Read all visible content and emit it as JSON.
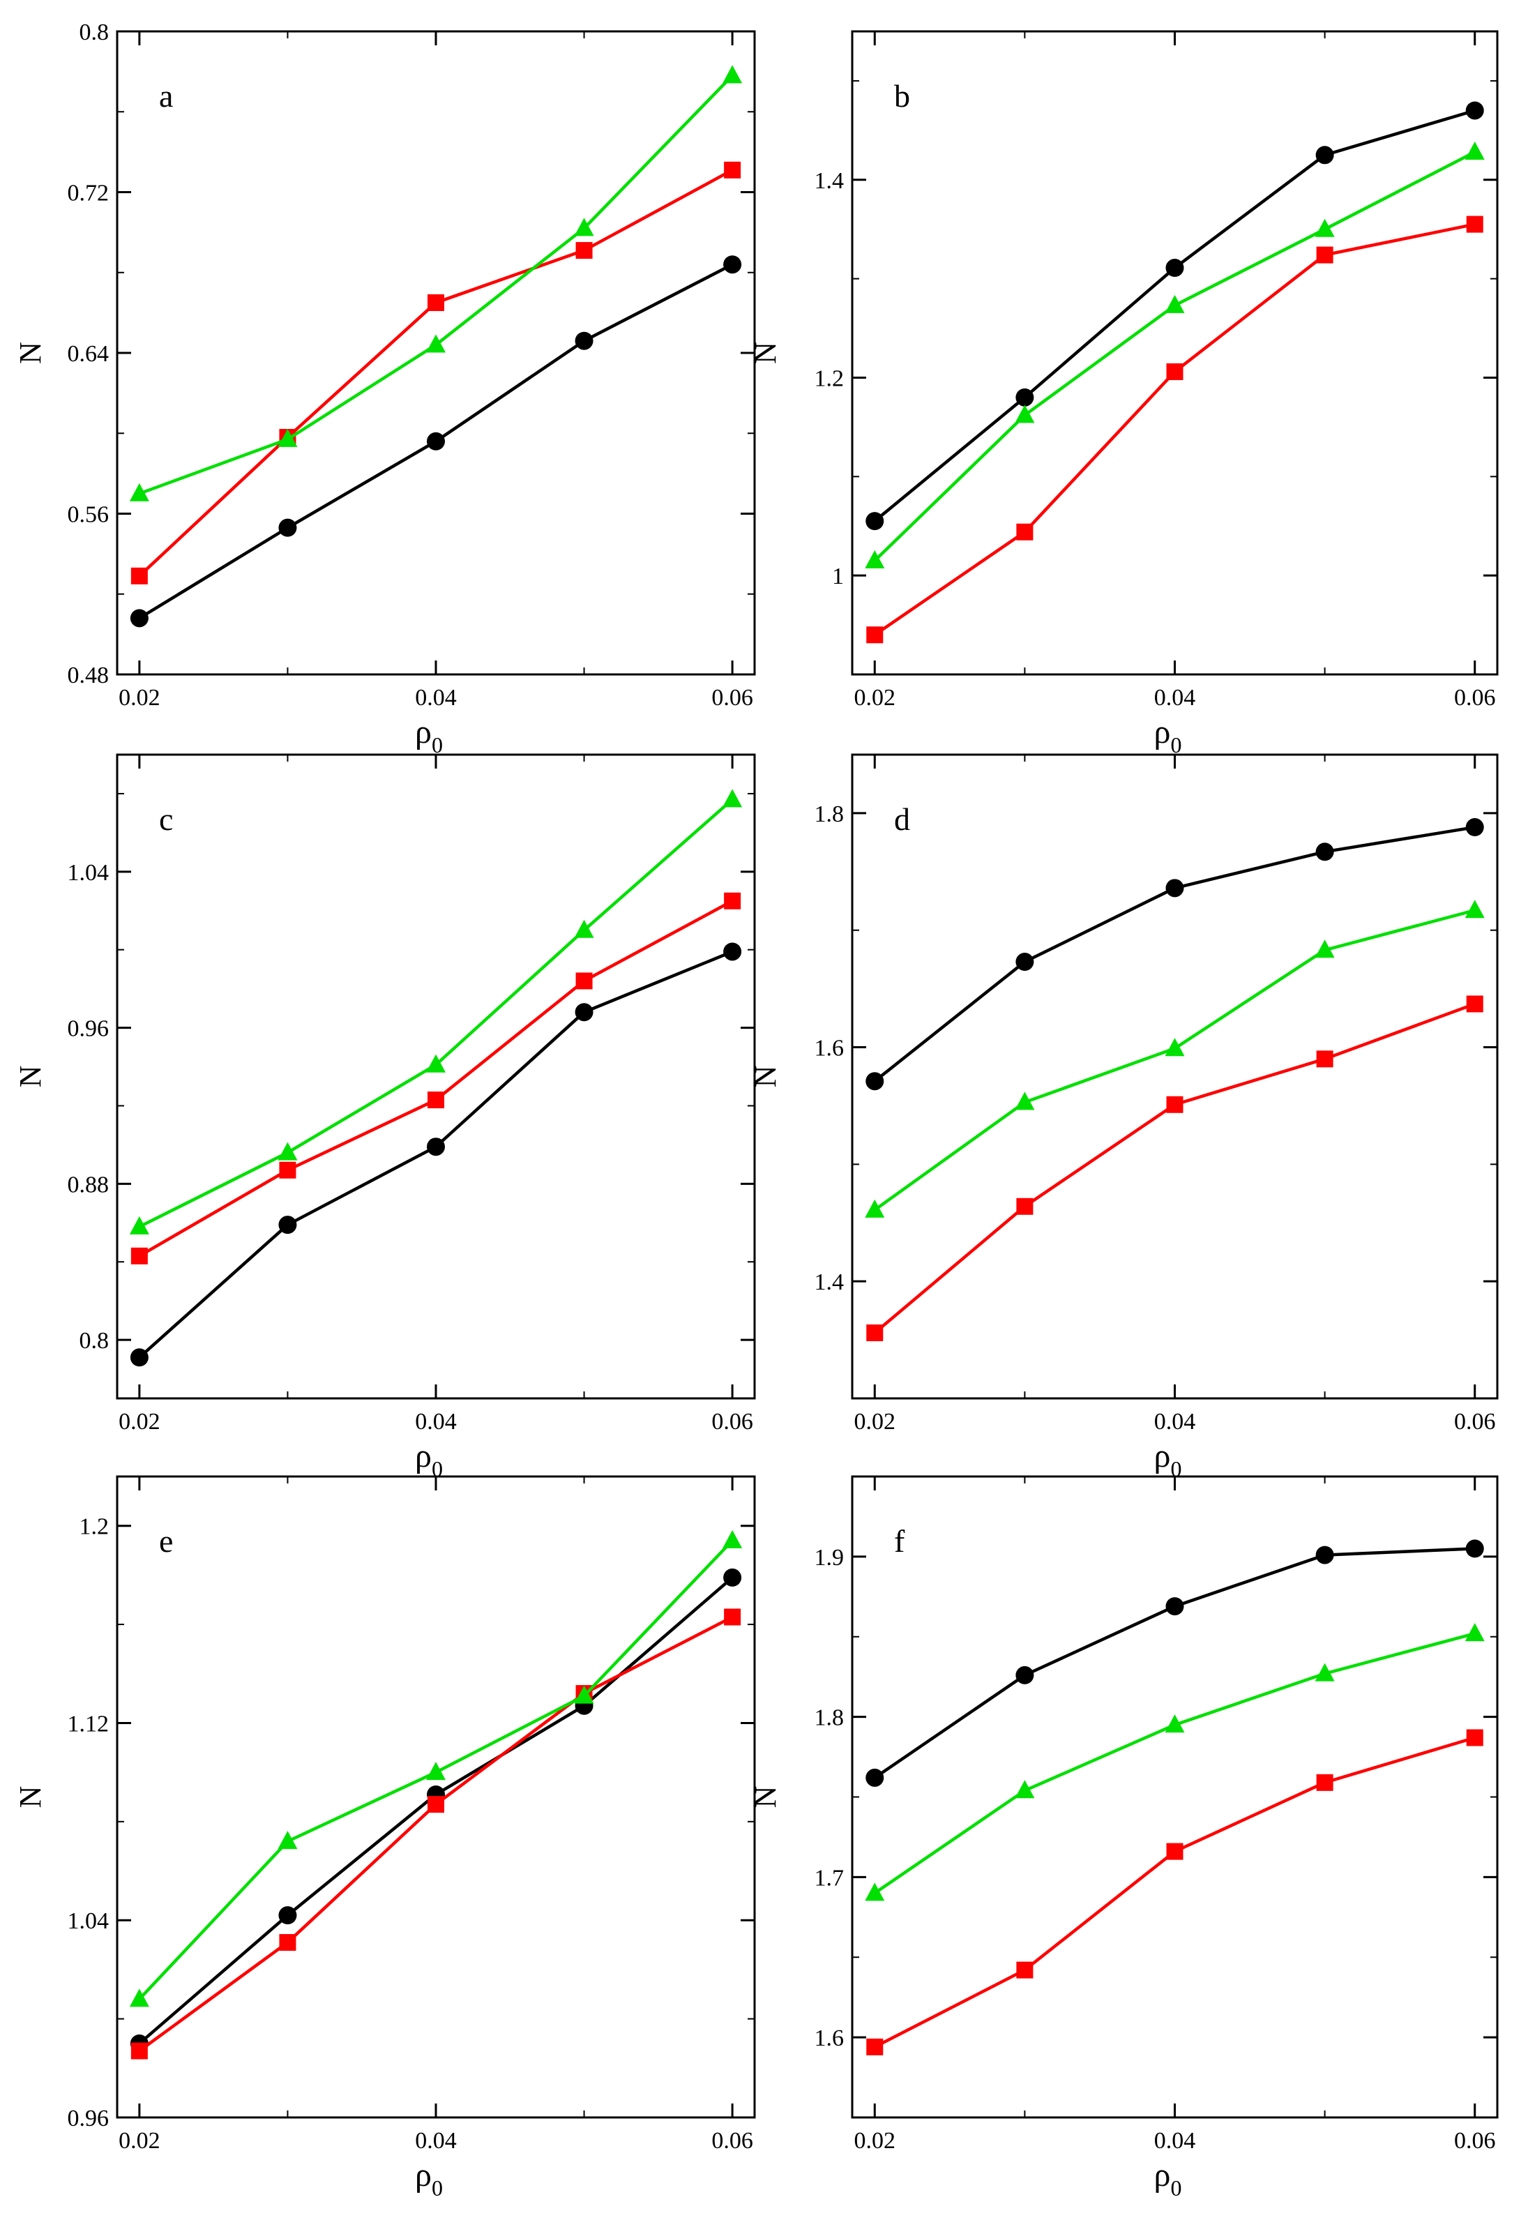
{
  "chart_data": [
    {
      "panel": "a",
      "type": "line",
      "x": [
        0.02,
        0.03,
        0.04,
        0.05,
        0.06
      ],
      "xlabel": "ρ",
      "xlabel_sub": "0",
      "ylabel": "N",
      "xlim": [
        0.0185,
        0.0615
      ],
      "ylim": [
        0.48,
        0.8
      ],
      "xticks": [
        "0.02",
        "0.04",
        "0.06"
      ],
      "yticks": [
        "0.48",
        "0.56",
        "0.64",
        "0.72",
        "0.8"
      ],
      "series": [
        {
          "name": "circle",
          "color": "#000000",
          "marker": "circle",
          "values": [
            0.508,
            0.553,
            0.596,
            0.646,
            0.684
          ]
        },
        {
          "name": "square",
          "color": "#ff0000",
          "marker": "square",
          "values": [
            0.529,
            0.598,
            0.665,
            0.691,
            0.731
          ]
        },
        {
          "name": "triangle",
          "color": "#00e000",
          "marker": "triangle",
          "values": [
            0.57,
            0.597,
            0.644,
            0.702,
            0.778
          ]
        }
      ]
    },
    {
      "panel": "b",
      "type": "line",
      "x": [
        0.02,
        0.03,
        0.04,
        0.05,
        0.06
      ],
      "xlabel": "ρ",
      "xlabel_sub": "0",
      "ylabel": "N",
      "xlim": [
        0.0185,
        0.0615
      ],
      "ylim": [
        0.9,
        1.55
      ],
      "xticks": [
        "0.02",
        "0.04",
        "0.06"
      ],
      "yticks": [
        "1",
        "1.2",
        "1.4"
      ],
      "series": [
        {
          "name": "circle",
          "color": "#000000",
          "marker": "circle",
          "values": [
            1.055,
            1.18,
            1.311,
            1.425,
            1.47
          ]
        },
        {
          "name": "square",
          "color": "#ff0000",
          "marker": "square",
          "values": [
            0.94,
            1.044,
            1.206,
            1.324,
            1.355
          ]
        },
        {
          "name": "triangle",
          "color": "#00e000",
          "marker": "triangle",
          "values": [
            1.015,
            1.162,
            1.273,
            1.35,
            1.428
          ]
        }
      ]
    },
    {
      "panel": "c",
      "type": "line",
      "x": [
        0.02,
        0.03,
        0.04,
        0.05,
        0.06
      ],
      "xlabel": "ρ",
      "xlabel_sub": "0",
      "ylabel": "N",
      "xlim": [
        0.0185,
        0.0615
      ],
      "ylim": [
        0.77,
        1.1
      ],
      "xticks": [
        "0.02",
        "0.04",
        "0.06"
      ],
      "yticks": [
        "0.8",
        "0.88",
        "0.96",
        "1.04"
      ],
      "series": [
        {
          "name": "circle",
          "color": "#000000",
          "marker": "circle",
          "values": [
            0.791,
            0.859,
            0.899,
            0.968,
            0.999
          ]
        },
        {
          "name": "square",
          "color": "#ff0000",
          "marker": "square",
          "values": [
            0.843,
            0.887,
            0.923,
            0.984,
            1.025
          ]
        },
        {
          "name": "triangle",
          "color": "#00e000",
          "marker": "triangle",
          "values": [
            0.858,
            0.896,
            0.941,
            1.01,
            1.077
          ]
        }
      ]
    },
    {
      "panel": "d",
      "type": "line",
      "x": [
        0.02,
        0.03,
        0.04,
        0.05,
        0.06
      ],
      "xlabel": "ρ",
      "xlabel_sub": "0",
      "ylabel": "N",
      "xlim": [
        0.0185,
        0.0615
      ],
      "ylim": [
        1.3,
        1.85
      ],
      "xticks": [
        "0.02",
        "0.04",
        "0.06"
      ],
      "yticks": [
        "1.4",
        "1.6",
        "1.8"
      ],
      "series": [
        {
          "name": "circle",
          "color": "#000000",
          "marker": "circle",
          "values": [
            1.571,
            1.673,
            1.736,
            1.767,
            1.788
          ]
        },
        {
          "name": "square",
          "color": "#ff0000",
          "marker": "square",
          "values": [
            1.356,
            1.464,
            1.551,
            1.59,
            1.637
          ]
        },
        {
          "name": "triangle",
          "color": "#00e000",
          "marker": "triangle",
          "values": [
            1.461,
            1.553,
            1.599,
            1.683,
            1.717
          ]
        }
      ]
    },
    {
      "panel": "e",
      "type": "line",
      "x": [
        0.02,
        0.03,
        0.04,
        0.05,
        0.06
      ],
      "xlabel": "ρ",
      "xlabel_sub": "0",
      "ylabel": "N",
      "xlim": [
        0.0185,
        0.0615
      ],
      "ylim": [
        0.96,
        1.22
      ],
      "xticks": [
        "0.02",
        "0.04",
        "0.06"
      ],
      "yticks": [
        "0.96",
        "1.04",
        "1.12",
        "1.2"
      ],
      "series": [
        {
          "name": "circle",
          "color": "#000000",
          "marker": "circle",
          "values": [
            0.99,
            1.042,
            1.091,
            1.127,
            1.179
          ]
        },
        {
          "name": "square",
          "color": "#ff0000",
          "marker": "square",
          "values": [
            0.987,
            1.031,
            1.087,
            1.132,
            1.163
          ]
        },
        {
          "name": "triangle",
          "color": "#00e000",
          "marker": "triangle",
          "values": [
            1.008,
            1.072,
            1.1,
            1.131,
            1.194
          ]
        }
      ]
    },
    {
      "panel": "f",
      "type": "line",
      "x": [
        0.02,
        0.03,
        0.04,
        0.05,
        0.06
      ],
      "xlabel": "ρ",
      "xlabel_sub": "0",
      "ylabel": "N",
      "xlim": [
        0.0185,
        0.0615
      ],
      "ylim": [
        1.55,
        1.95
      ],
      "xticks": [
        "0.02",
        "0.04",
        "0.06"
      ],
      "yticks": [
        "1.6",
        "1.7",
        "1.8",
        "1.9"
      ],
      "series": [
        {
          "name": "circle",
          "color": "#000000",
          "marker": "circle",
          "values": [
            1.762,
            1.826,
            1.869,
            1.901,
            1.905
          ]
        },
        {
          "name": "square",
          "color": "#ff0000",
          "marker": "square",
          "values": [
            1.594,
            1.642,
            1.716,
            1.759,
            1.787
          ]
        },
        {
          "name": "triangle",
          "color": "#00e000",
          "marker": "triangle",
          "values": [
            1.69,
            1.754,
            1.795,
            1.827,
            1.852
          ]
        }
      ]
    }
  ]
}
